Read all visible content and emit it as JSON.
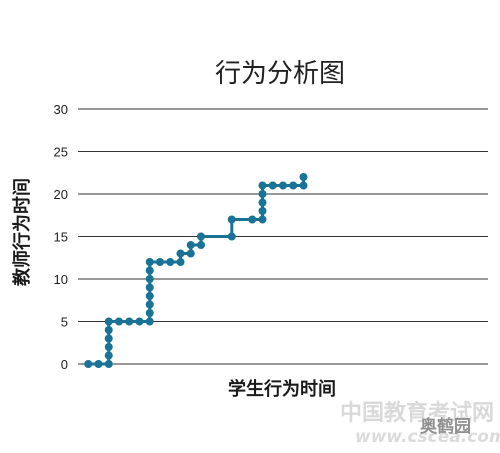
{
  "chart_data": {
    "type": "line",
    "step": true,
    "title": "行为分析图",
    "xlabel": "学生行为时间",
    "ylabel": "教师行为时间",
    "ylim": [
      0,
      30
    ],
    "yticks": [
      "0",
      "5",
      "10",
      "15",
      "20",
      "25",
      "30"
    ],
    "xlim": [
      0,
      40
    ],
    "grid": true,
    "legend": "none",
    "color": "#1a7397",
    "series": [
      {
        "points": [
          [
            1,
            0
          ],
          [
            2,
            0
          ],
          [
            3,
            0
          ],
          [
            3,
            1
          ],
          [
            3,
            2
          ],
          [
            3,
            3
          ],
          [
            3,
            4
          ],
          [
            3,
            5
          ],
          [
            4,
            5
          ],
          [
            5,
            5
          ],
          [
            6,
            5
          ],
          [
            7,
            5
          ],
          [
            7,
            6
          ],
          [
            7,
            7
          ],
          [
            7,
            8
          ],
          [
            7,
            9
          ],
          [
            7,
            10
          ],
          [
            7,
            11
          ],
          [
            7,
            12
          ],
          [
            8,
            12
          ],
          [
            9,
            12
          ],
          [
            10,
            12
          ],
          [
            10,
            13
          ],
          [
            11,
            13
          ],
          [
            11,
            14
          ],
          [
            12,
            14
          ],
          [
            12,
            15
          ],
          [
            15,
            15
          ],
          [
            15,
            17
          ],
          [
            17,
            17
          ],
          [
            18,
            17
          ],
          [
            18,
            18
          ],
          [
            18,
            19
          ],
          [
            18,
            20
          ],
          [
            18,
            21
          ],
          [
            19,
            21
          ],
          [
            20,
            21
          ],
          [
            21,
            21
          ],
          [
            22,
            21
          ],
          [
            22,
            22
          ]
        ]
      }
    ]
  },
  "watermark": {
    "cn": "中国教育考试网",
    "url": "www.cscea.com",
    "logo": "奥鹤园"
  }
}
